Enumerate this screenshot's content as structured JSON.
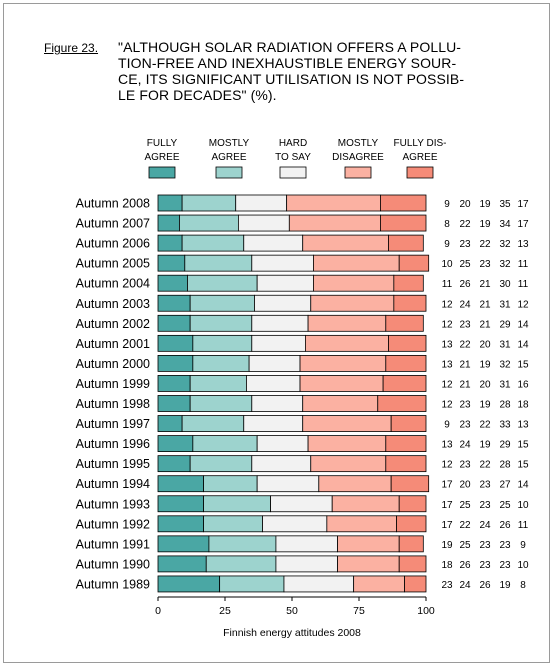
{
  "figure_label": "Figure 23.",
  "chart_data": {
    "type": "bar",
    "stacked": true,
    "orientation": "horizontal",
    "title": "\"ALTHOUGH SOLAR RADIATION OFFERS A POLLU-\nTION-FREE AND INEXHAUSTIBLE ENERGY SOUR-\nCE, ITS SIGNIFICANT UTILISATION IS NOT POSSIB-\nLE FOR DECADES\" (%).",
    "xlabel": "Finnish energy attitudes 2008",
    "xlim": [
      0,
      100
    ],
    "xticks": [
      "0",
      "25",
      "50",
      "75",
      "100"
    ],
    "grid": false,
    "legend_position": "top",
    "categories": [
      "Autumn 2008",
      "Autumn 2007",
      "Autumn 2006",
      "Autumn 2005",
      "Autumn 2004",
      "Autumn 2003",
      "Autumn 2002",
      "Autumn 2001",
      "Autumn 2000",
      "Autumn 1999",
      "Autumn 1998",
      "Autumn 1997",
      "Autumn 1996",
      "Autumn 1995",
      "Autumn 1994",
      "Autumn 1993",
      "Autumn 1992",
      "Autumn 1991",
      "Autumn 1990",
      "Autumn 1989"
    ],
    "series": [
      {
        "name": "FULLY AGREE",
        "legend_lines": [
          "FULLY",
          "AGREE"
        ],
        "color": "#4aa7a4",
        "values": [
          9,
          8,
          9,
          10,
          11,
          12,
          12,
          13,
          13,
          12,
          12,
          9,
          13,
          12,
          17,
          17,
          17,
          19,
          18,
          23
        ]
      },
      {
        "name": "MOSTLY AGREE",
        "legend_lines": [
          "MOSTLY",
          "AGREE"
        ],
        "color": "#9dd3ce",
        "values": [
          20,
          22,
          23,
          25,
          26,
          24,
          23,
          22,
          21,
          21,
          23,
          23,
          24,
          23,
          20,
          25,
          22,
          25,
          26,
          24
        ]
      },
      {
        "name": "HARD TO SAY",
        "legend_lines": [
          "HARD",
          "TO SAY"
        ],
        "color": "#f2f2f2",
        "values": [
          19,
          19,
          22,
          23,
          21,
          21,
          21,
          20,
          19,
          20,
          19,
          22,
          19,
          22,
          23,
          23,
          24,
          23,
          23,
          26
        ]
      },
      {
        "name": "MOSTLY DISAGREE",
        "legend_lines": [
          "MOSTLY",
          "DISAGREE"
        ],
        "color": "#fbb1a2",
        "values": [
          35,
          34,
          32,
          32,
          30,
          31,
          29,
          31,
          32,
          31,
          28,
          33,
          29,
          28,
          27,
          25,
          26,
          23,
          23,
          19
        ]
      },
      {
        "name": "FULLY DISAGREE",
        "legend_lines": [
          "FULLY DIS-",
          "AGREE"
        ],
        "color": "#f58b78",
        "values": [
          17,
          17,
          13,
          11,
          11,
          12,
          14,
          14,
          15,
          16,
          18,
          13,
          15,
          15,
          14,
          10,
          11,
          9,
          10,
          8
        ]
      }
    ]
  }
}
